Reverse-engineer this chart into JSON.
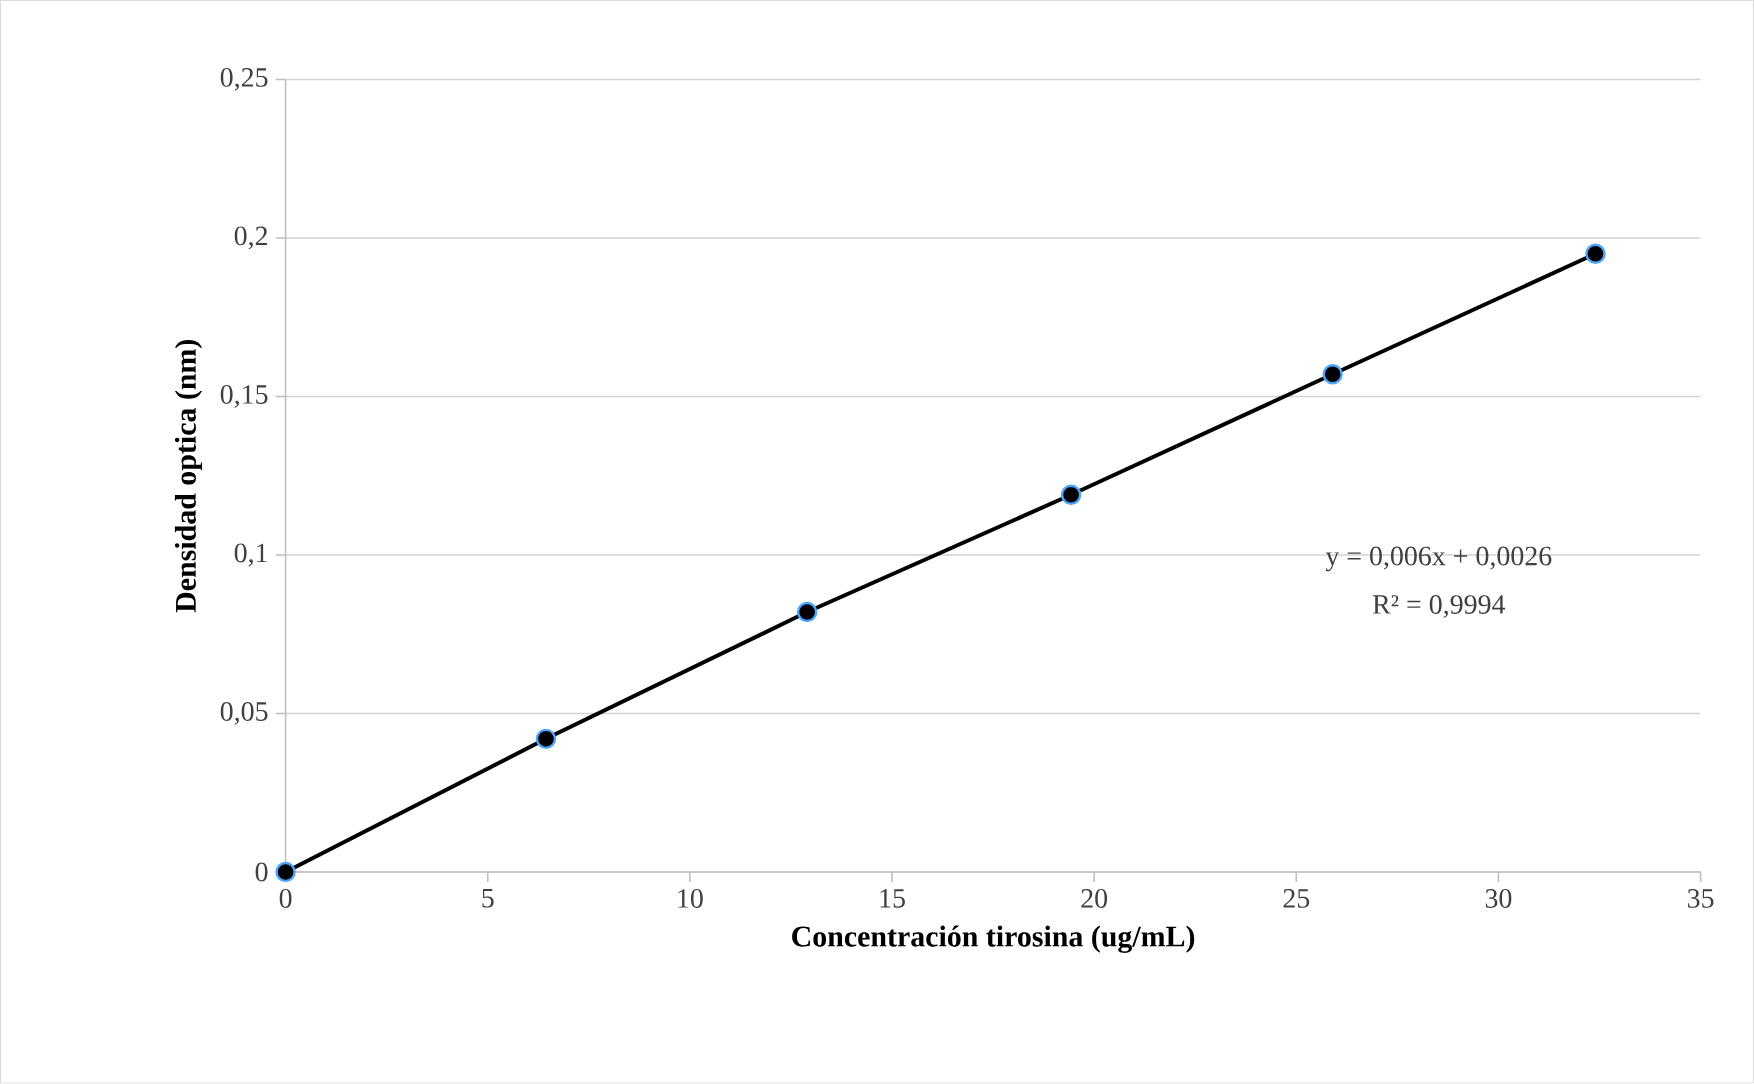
{
  "chart_data": {
    "type": "line",
    "xlabel": "Concentración tirosina (ug/mL)",
    "ylabel": "Densidad optica (nm)",
    "x": [
      0,
      6.44,
      12.9,
      19.43,
      25.9,
      32.4
    ],
    "series": [
      {
        "color": "#000000",
        "values": [
          0,
          0.042,
          0.082,
          0.119,
          0.157,
          0.195
        ]
      }
    ],
    "marker": "circle",
    "line_style": "solid",
    "grid": "y",
    "xlim": [
      0,
      35
    ],
    "xticks": [
      0,
      5,
      10,
      15,
      20,
      25,
      30,
      35
    ],
    "ylim": [
      0,
      0.25
    ],
    "yticks": [
      0,
      {
        "value": 0.05,
        "label": "0,05"
      },
      {
        "value": 0.1,
        "label": "0,1"
      },
      {
        "value": 0.15,
        "label": "0,15"
      },
      {
        "value": 0.2,
        "label": "0,2"
      },
      {
        "value": 0.25,
        "label": "0,25"
      }
    ],
    "annotations": [
      "y = 0,006x + 0,0026",
      "R² = 0,9994"
    ]
  }
}
